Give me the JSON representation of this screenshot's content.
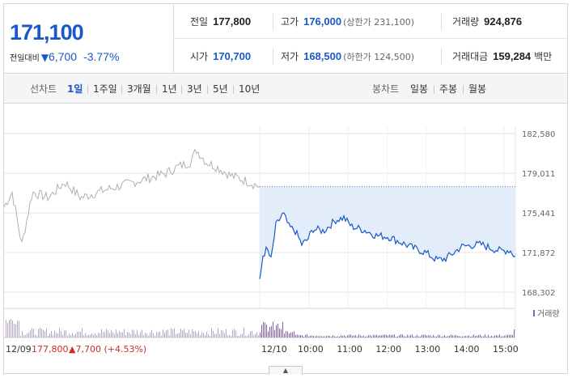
{
  "quote": {
    "current_price": "171,100",
    "diff_label": "전일대비",
    "diff_arrow": "▼",
    "diff_amount": "6,700",
    "diff_percent": "-3.77%"
  },
  "stats": {
    "prev_close": {
      "label": "전일",
      "value": "177,800"
    },
    "high": {
      "label": "고가",
      "value": "176,000",
      "sub": "(상한가 231,100)"
    },
    "volume": {
      "label": "거래량",
      "value": "924,876"
    },
    "open": {
      "label": "시가",
      "value": "170,700"
    },
    "low": {
      "label": "저가",
      "value": "168,500",
      "sub": "(하한가 124,500)"
    },
    "trade_value": {
      "label": "거래대금",
      "value": "159,284",
      "unit": "백만"
    }
  },
  "line_chart_tabs": {
    "label": "선차트",
    "items": [
      "1일",
      "1주일",
      "3개월",
      "1년",
      "3년",
      "5년",
      "10년"
    ],
    "active": "1일"
  },
  "candle_chart_tabs": {
    "label": "봉차트",
    "items": [
      "일봉",
      "주봉",
      "월봉"
    ]
  },
  "chart_data": {
    "type": "line",
    "y_ticks": [
      "182,580",
      "179,011",
      "175,441",
      "171,872",
      "168,302"
    ],
    "ylim": [
      168302,
      182580
    ],
    "prev_close_line": 177800,
    "prev_day": {
      "date": "12/09",
      "close": "177,800",
      "change_arrow": "▲",
      "change": "7,700",
      "change_pct": "(+4.53%)"
    },
    "today_date": "12/10",
    "x_labels": [
      "10:00",
      "11:00",
      "12:00",
      "13:00",
      "14:00",
      "15:00"
    ],
    "volume_label": "거래량",
    "colors": {
      "prev": "#b0b0b0",
      "today": "#1a57c7",
      "fill": "#e3edf9",
      "volume": "#8a5fb0",
      "volume_prev": "#b5a8c6"
    }
  },
  "expand_icon": "▲"
}
